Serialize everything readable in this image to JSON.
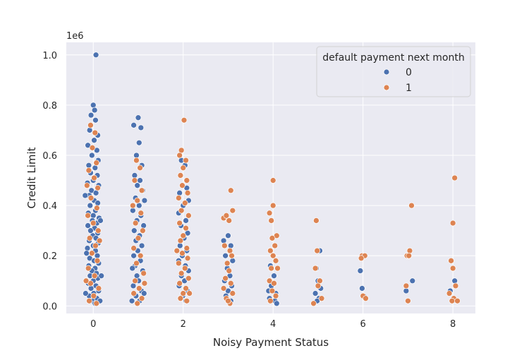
{
  "chart_data": {
    "type": "scatter",
    "title": "",
    "xlabel": "Noisy Payment Status",
    "ylabel": "Credit Limit",
    "y_offset_label": "1e6",
    "xlim": [
      -0.6,
      8.5
    ],
    "ylim": [
      -0.03,
      1.05
    ],
    "x_ticks": [
      0,
      2,
      4,
      6,
      8
    ],
    "x_tick_labels": [
      "0",
      "2",
      "4",
      "6",
      "8"
    ],
    "y_ticks": [
      0.0,
      0.2,
      0.4,
      0.6,
      0.8,
      1.0
    ],
    "y_tick_labels": [
      "0.0",
      "0.2",
      "0.4",
      "0.6",
      "0.8",
      "1.0"
    ],
    "grid": true,
    "legend": {
      "title": "default payment next month",
      "placement": "top-right",
      "entries": [
        {
          "label": "0",
          "color": "#4c72b0"
        },
        {
          "label": "1",
          "color": "#dd8452"
        }
      ]
    },
    "series": [
      {
        "name": "0",
        "color": "#4c72b0",
        "points": [
          [
            0.06,
            1.0
          ],
          [
            0.0,
            0.8
          ],
          [
            0.03,
            0.78
          ],
          [
            -0.05,
            0.76
          ],
          [
            0.05,
            0.74
          ],
          [
            -0.08,
            0.7
          ],
          [
            0.1,
            0.68
          ],
          [
            0.02,
            0.66
          ],
          [
            -0.12,
            0.64
          ],
          [
            0.08,
            0.62
          ],
          [
            -0.03,
            0.6
          ],
          [
            0.11,
            0.58
          ],
          [
            -0.1,
            0.56
          ],
          [
            0.04,
            0.55
          ],
          [
            -0.06,
            0.53
          ],
          [
            0.09,
            0.52
          ],
          [
            0.0,
            0.5
          ],
          [
            -0.13,
            0.49
          ],
          [
            0.12,
            0.48
          ],
          [
            -0.04,
            0.46
          ],
          [
            0.06,
            0.45
          ],
          [
            -0.09,
            0.44
          ],
          [
            0.02,
            0.42
          ],
          [
            0.1,
            0.41
          ],
          [
            -0.07,
            0.4
          ],
          [
            0.05,
            0.38
          ],
          [
            -0.11,
            0.37
          ],
          [
            0.0,
            0.36
          ],
          [
            0.13,
            0.35
          ],
          [
            -0.02,
            0.34
          ],
          [
            0.08,
            0.33
          ],
          [
            -0.12,
            0.32
          ],
          [
            0.03,
            0.31
          ],
          [
            -0.06,
            0.3
          ],
          [
            0.1,
            0.29
          ],
          [
            -0.01,
            0.28
          ],
          [
            0.06,
            0.27
          ],
          [
            -0.09,
            0.26
          ],
          [
            0.11,
            0.25
          ],
          [
            0.0,
            0.24
          ],
          [
            -0.13,
            0.23
          ],
          [
            0.05,
            0.22
          ],
          [
            -0.04,
            0.21
          ],
          [
            0.09,
            0.2
          ],
          [
            -0.08,
            0.19
          ],
          [
            0.02,
            0.18
          ],
          [
            0.12,
            0.17
          ],
          [
            -0.1,
            0.16
          ],
          [
            0.04,
            0.15
          ],
          [
            -0.03,
            0.14
          ],
          [
            0.07,
            0.13
          ],
          [
            -0.07,
            0.12
          ],
          [
            0.1,
            0.11
          ],
          [
            0.0,
            0.1
          ],
          [
            -0.11,
            0.09
          ],
          [
            0.06,
            0.08
          ],
          [
            -0.05,
            0.07
          ],
          [
            0.12,
            0.06
          ],
          [
            0.01,
            0.05
          ],
          [
            -0.09,
            0.04
          ],
          [
            0.08,
            0.03
          ],
          [
            -0.02,
            0.02
          ],
          [
            0.04,
            0.01
          ],
          [
            -0.18,
            0.44
          ],
          [
            -0.15,
            0.21
          ],
          [
            0.16,
            0.34
          ],
          [
            0.18,
            0.12
          ],
          [
            -0.17,
            0.05
          ],
          [
            0.15,
            0.02
          ],
          [
            0.9,
            0.72
          ],
          [
            1.0,
            0.75
          ],
          [
            1.06,
            0.71
          ],
          [
            1.02,
            0.65
          ],
          [
            0.96,
            0.6
          ],
          [
            1.08,
            0.56
          ],
          [
            0.92,
            0.52
          ],
          [
            1.04,
            0.5
          ],
          [
            0.98,
            0.48
          ],
          [
            1.1,
            0.46
          ],
          [
            0.94,
            0.43
          ],
          [
            1.02,
            0.4
          ],
          [
            0.88,
            0.38
          ],
          [
            1.06,
            0.36
          ],
          [
            0.97,
            0.34
          ],
          [
            1.12,
            0.32
          ],
          [
            0.91,
            0.3
          ],
          [
            1.03,
            0.28
          ],
          [
            0.95,
            0.26
          ],
          [
            1.08,
            0.24
          ],
          [
            0.99,
            0.22
          ],
          [
            0.9,
            0.2
          ],
          [
            1.05,
            0.18
          ],
          [
            0.93,
            0.16
          ],
          [
            1.1,
            0.14
          ],
          [
            0.97,
            0.12
          ],
          [
            1.01,
            0.1
          ],
          [
            0.89,
            0.08
          ],
          [
            1.07,
            0.06
          ],
          [
            0.95,
            0.04
          ],
          [
            1.03,
            0.02
          ],
          [
            0.86,
            0.02
          ],
          [
            1.13,
            0.05
          ],
          [
            0.87,
            0.15
          ],
          [
            1.14,
            0.42
          ],
          [
            1.96,
            0.58
          ],
          [
            2.04,
            0.56
          ],
          [
            2.08,
            0.47
          ],
          [
            1.92,
            0.45
          ],
          [
            2.12,
            0.42
          ],
          [
            2.0,
            0.4
          ],
          [
            1.9,
            0.37
          ],
          [
            2.06,
            0.34
          ],
          [
            1.95,
            0.32
          ],
          [
            2.1,
            0.29
          ],
          [
            2.02,
            0.27
          ],
          [
            1.93,
            0.24
          ],
          [
            2.08,
            0.22
          ],
          [
            1.98,
            0.2
          ],
          [
            1.9,
            0.18
          ],
          [
            2.05,
            0.16
          ],
          [
            2.12,
            0.14
          ],
          [
            1.96,
            0.12
          ],
          [
            2.03,
            0.1
          ],
          [
            1.91,
            0.08
          ],
          [
            2.09,
            0.06
          ],
          [
            1.99,
            0.04
          ],
          [
            2.06,
            0.02
          ],
          [
            1.94,
            0.03
          ],
          [
            2.9,
            0.26
          ],
          [
            3.0,
            0.28
          ],
          [
            3.06,
            0.24
          ],
          [
            2.94,
            0.2
          ],
          [
            3.1,
            0.18
          ],
          [
            2.98,
            0.15
          ],
          [
            3.04,
            0.12
          ],
          [
            2.92,
            0.1
          ],
          [
            3.08,
            0.08
          ],
          [
            3.0,
            0.06
          ],
          [
            2.95,
            0.04
          ],
          [
            3.06,
            0.02
          ],
          [
            3.94,
            0.16
          ],
          [
            4.02,
            0.12
          ],
          [
            3.96,
            0.08
          ],
          [
            4.06,
            0.05
          ],
          [
            3.92,
            0.03
          ],
          [
            4.04,
            0.02
          ],
          [
            3.9,
            0.06
          ],
          [
            4.08,
            0.01
          ],
          [
            5.04,
            0.22
          ],
          [
            4.96,
            0.15
          ],
          [
            5.0,
            0.1
          ],
          [
            5.06,
            0.07
          ],
          [
            4.94,
            0.05
          ],
          [
            5.02,
            0.03
          ],
          [
            4.98,
            0.02
          ],
          [
            5.94,
            0.14
          ],
          [
            6.0,
            0.2
          ],
          [
            6.02,
            0.04
          ],
          [
            5.98,
            0.07
          ],
          [
            7.1,
            0.1
          ],
          [
            6.96,
            0.06
          ],
          [
            7.94,
            0.06
          ],
          [
            8.04,
            0.1
          ],
          [
            7.98,
            0.02
          ],
          [
            8.08,
            0.02
          ]
        ]
      },
      {
        "name": "1",
        "color": "#dd8452",
        "points": [
          [
            -0.06,
            0.72
          ],
          [
            0.04,
            0.69
          ],
          [
            -0.02,
            0.63
          ],
          [
            0.07,
            0.57
          ],
          [
            -0.1,
            0.54
          ],
          [
            0.02,
            0.51
          ],
          [
            0.1,
            0.47
          ],
          [
            -0.05,
            0.43
          ],
          [
            0.08,
            0.39
          ],
          [
            -0.12,
            0.36
          ],
          [
            0.0,
            0.33
          ],
          [
            0.11,
            0.3
          ],
          [
            -0.08,
            0.27
          ],
          [
            0.05,
            0.24
          ],
          [
            -0.03,
            0.21
          ],
          [
            0.09,
            0.18
          ],
          [
            -0.11,
            0.15
          ],
          [
            0.03,
            0.12
          ],
          [
            -0.06,
            0.09
          ],
          [
            0.12,
            0.07
          ],
          [
            0.01,
            0.04
          ],
          [
            -0.09,
            0.02
          ],
          [
            0.07,
            0.01
          ],
          [
            -0.14,
            0.48
          ],
          [
            0.14,
            0.26
          ],
          [
            -0.16,
            0.1
          ],
          [
            0.96,
            0.58
          ],
          [
            1.04,
            0.55
          ],
          [
            0.92,
            0.5
          ],
          [
            1.08,
            0.46
          ],
          [
            0.98,
            0.42
          ],
          [
            0.88,
            0.4
          ],
          [
            1.06,
            0.37
          ],
          [
            0.94,
            0.33
          ],
          [
            1.1,
            0.3
          ],
          [
            1.0,
            0.27
          ],
          [
            0.9,
            0.23
          ],
          [
            1.05,
            0.2
          ],
          [
            0.96,
            0.17
          ],
          [
            1.12,
            0.13
          ],
          [
            0.93,
            0.1
          ],
          [
            1.02,
            0.07
          ],
          [
            0.9,
            0.05
          ],
          [
            1.08,
            0.03
          ],
          [
            0.98,
            0.01
          ],
          [
            1.14,
            0.09
          ],
          [
            2.02,
            0.74
          ],
          [
            1.96,
            0.62
          ],
          [
            1.92,
            0.6
          ],
          [
            2.06,
            0.58
          ],
          [
            2.0,
            0.55
          ],
          [
            1.94,
            0.52
          ],
          [
            2.08,
            0.5
          ],
          [
            1.98,
            0.48
          ],
          [
            2.1,
            0.45
          ],
          [
            1.9,
            0.43
          ],
          [
            2.04,
            0.41
          ],
          [
            1.96,
            0.38
          ],
          [
            2.12,
            0.36
          ],
          [
            1.92,
            0.33
          ],
          [
            2.06,
            0.31
          ],
          [
            2.0,
            0.28
          ],
          [
            1.94,
            0.26
          ],
          [
            2.08,
            0.23
          ],
          [
            1.98,
            0.21
          ],
          [
            2.1,
            0.19
          ],
          [
            1.9,
            0.17
          ],
          [
            2.04,
            0.15
          ],
          [
            1.96,
            0.13
          ],
          [
            2.12,
            0.11
          ],
          [
            1.92,
            0.09
          ],
          [
            2.06,
            0.07
          ],
          [
            2.0,
            0.05
          ],
          [
            1.94,
            0.03
          ],
          [
            2.08,
            0.02
          ],
          [
            1.86,
            0.22
          ],
          [
            2.14,
            0.05
          ],
          [
            2.9,
            0.35
          ],
          [
            2.96,
            0.36
          ],
          [
            3.02,
            0.34
          ],
          [
            3.06,
            0.46
          ],
          [
            3.1,
            0.38
          ],
          [
            3.04,
            0.22
          ],
          [
            2.92,
            0.24
          ],
          [
            3.08,
            0.2
          ],
          [
            2.98,
            0.17
          ],
          [
            3.02,
            0.14
          ],
          [
            2.94,
            0.11
          ],
          [
            3.06,
            0.09
          ],
          [
            2.9,
            0.07
          ],
          [
            3.1,
            0.05
          ],
          [
            2.96,
            0.03
          ],
          [
            3.04,
            0.01
          ],
          [
            3.0,
            0.02
          ],
          [
            4.0,
            0.5
          ],
          [
            4.0,
            0.4
          ],
          [
            3.92,
            0.37
          ],
          [
            3.96,
            0.34
          ],
          [
            4.08,
            0.28
          ],
          [
            3.98,
            0.27
          ],
          [
            4.04,
            0.24
          ],
          [
            3.94,
            0.22
          ],
          [
            4.0,
            0.2
          ],
          [
            4.06,
            0.18
          ],
          [
            3.96,
            0.15
          ],
          [
            4.1,
            0.15
          ],
          [
            3.92,
            0.1
          ],
          [
            4.02,
            0.09
          ],
          [
            3.98,
            0.06
          ],
          [
            4.06,
            0.04
          ],
          [
            3.94,
            0.02
          ],
          [
            4.96,
            0.34
          ],
          [
            4.98,
            0.22
          ],
          [
            4.94,
            0.15
          ],
          [
            5.04,
            0.1
          ],
          [
            5.0,
            0.08
          ],
          [
            4.9,
            0.01
          ],
          [
            5.08,
            0.03
          ],
          [
            5.98,
            0.2
          ],
          [
            6.04,
            0.2
          ],
          [
            5.96,
            0.19
          ],
          [
            6.0,
            0.04
          ],
          [
            6.06,
            0.03
          ],
          [
            7.08,
            0.4
          ],
          [
            7.04,
            0.22
          ],
          [
            6.98,
            0.2
          ],
          [
            7.02,
            0.2
          ],
          [
            6.96,
            0.08
          ],
          [
            7.0,
            0.02
          ],
          [
            8.04,
            0.51
          ],
          [
            8.0,
            0.33
          ],
          [
            7.96,
            0.18
          ],
          [
            8.0,
            0.15
          ],
          [
            7.92,
            0.05
          ],
          [
            8.06,
            0.08
          ],
          [
            8.02,
            0.03
          ],
          [
            7.98,
            0.02
          ],
          [
            8.1,
            0.02
          ]
        ]
      }
    ]
  }
}
